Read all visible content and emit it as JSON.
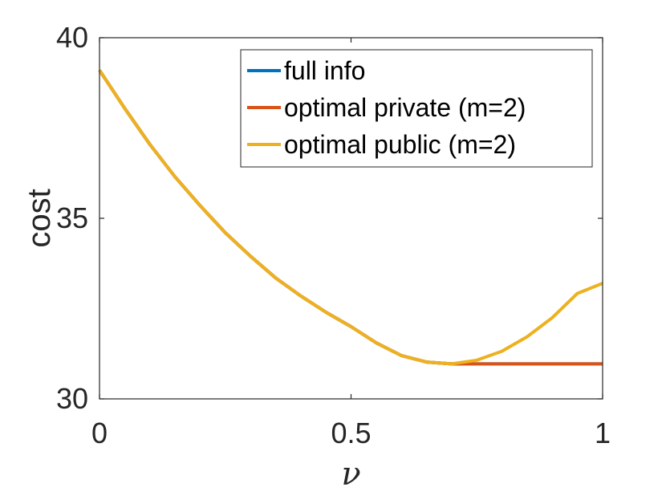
{
  "chart_data": {
    "type": "line",
    "title": "",
    "xlabel": "ν",
    "ylabel": "cost",
    "xlim": [
      0,
      1
    ],
    "ylim": [
      30,
      40
    ],
    "xticks": [
      0,
      0.5,
      1
    ],
    "xtick_labels": [
      "0",
      "0.5",
      "1"
    ],
    "yticks": [
      30,
      35,
      40
    ],
    "ytick_labels": [
      "30",
      "35",
      "40"
    ],
    "grid": false,
    "legend_position": "top-right",
    "x": [
      0,
      0.05,
      0.1,
      0.15,
      0.2,
      0.25,
      0.3,
      0.35,
      0.4,
      0.45,
      0.5,
      0.55,
      0.6,
      0.65,
      0.7,
      0.75,
      0.8,
      0.85,
      0.9,
      0.95,
      1
    ],
    "series": [
      {
        "name": "full info",
        "color": "#0072BD",
        "values": [
          39.1,
          38.05,
          37.05,
          36.15,
          35.35,
          34.6,
          33.95,
          33.35,
          32.85,
          32.4,
          32.0,
          31.55,
          31.2,
          31.02,
          30.97,
          30.97,
          30.97,
          30.97,
          30.97,
          30.97,
          30.97
        ]
      },
      {
        "name": "optimal private (m=2)",
        "color": "#D95319",
        "values": [
          39.1,
          38.05,
          37.05,
          36.15,
          35.35,
          34.6,
          33.95,
          33.35,
          32.85,
          32.4,
          32.0,
          31.55,
          31.2,
          31.02,
          30.97,
          30.97,
          30.97,
          30.97,
          30.97,
          30.97,
          30.97
        ]
      },
      {
        "name": "optimal public (m=2)",
        "color": "#EDB120",
        "values": [
          39.1,
          38.05,
          37.05,
          36.15,
          35.35,
          34.6,
          33.95,
          33.35,
          32.85,
          32.4,
          32.0,
          31.55,
          31.2,
          31.02,
          30.97,
          31.07,
          31.32,
          31.72,
          32.25,
          32.92,
          33.2
        ]
      }
    ]
  }
}
